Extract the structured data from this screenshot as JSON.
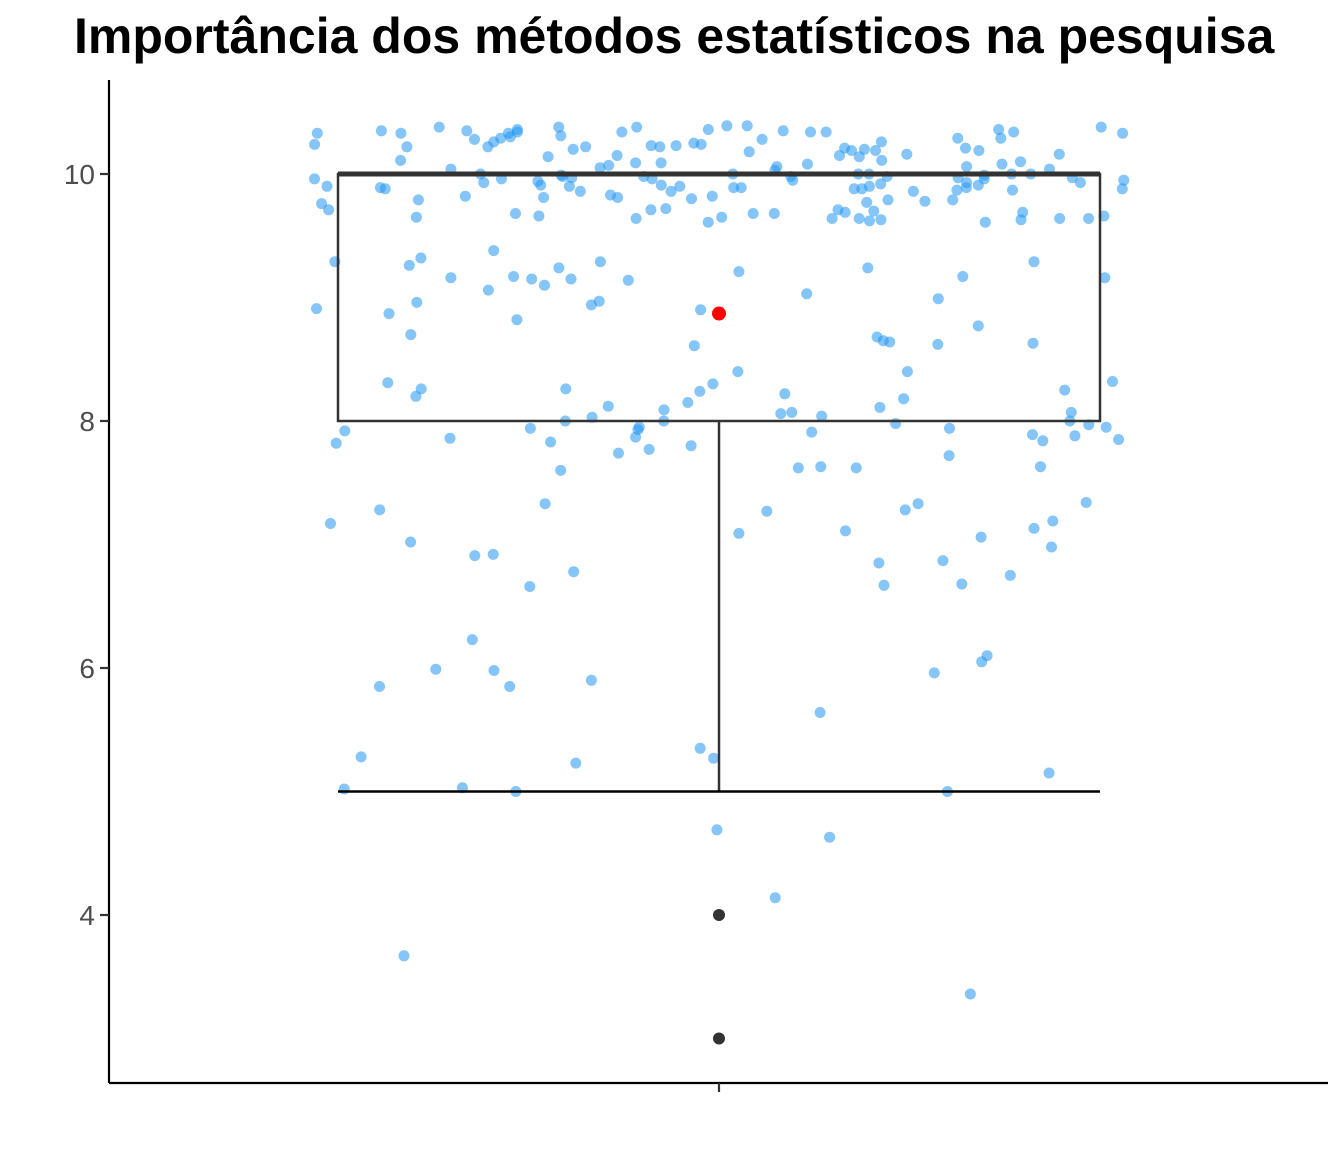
{
  "chart_data": {
    "type": "boxplot",
    "title": "Importância dos métodos estatísticos na pesquisa",
    "xlabel": "",
    "ylabel": "",
    "y_ticks": [
      4,
      6,
      8,
      10
    ],
    "ylim": [
      2.67,
      10.77
    ],
    "grid": false,
    "legend": "none",
    "box": {
      "lower_whisker": 5,
      "q1": 8,
      "median": 10,
      "q3": 10,
      "upper_whisker": 10,
      "mean": 8.87
    },
    "outliers": [
      4,
      3
    ],
    "jitter_values": [
      10.21,
      10.38,
      10.34,
      10.33,
      10.2,
      10.14,
      9.16,
      10.0,
      9.98,
      9.61,
      9.86,
      10.22,
      10.29,
      10.35,
      10.35,
      10.29,
      10.0,
      9.79,
      9.63,
      10.36,
      10.33,
      10.25,
      10.16,
      10.07,
      9.94,
      9.83,
      9.64,
      10.1,
      9.96,
      10.22,
      10.19,
      10.04,
      10.38,
      9.9,
      9.81,
      9.65,
      9.66,
      9.8,
      9.78,
      10.26,
      9.72,
      9.69,
      9.91,
      9.99,
      10.39,
      10.29,
      10.26,
      10.11,
      9.98,
      9.88,
      9.7,
      9.64,
      9.63,
      10.36,
      10.34,
      10.38,
      10.23,
      9.93,
      9.91,
      9.71,
      9.68,
      9.79,
      9.88,
      9.96,
      9.81,
      9.66,
      9.71,
      10.22,
      10.21,
      10.24,
      10.18,
      10.08,
      10.34,
      9.92,
      9.9,
      10.28,
      10.23,
      10.39,
      10.19,
      10.14,
      9.61,
      9.64,
      10.28,
      9.89,
      10.04,
      10.08,
      9.76,
      9.64,
      10.15,
      10.09,
      10.06,
      9.9,
      9.91,
      9.87,
      9.88,
      9.82,
      9.82,
      9.68,
      9.64,
      10.34,
      10.06,
      10.19,
      9.89,
      9.97,
      10.35,
      10.33,
      9.9,
      9.89,
      9.98,
      9.87,
      9.96,
      9.93,
      9.98,
      10.09,
      10.33,
      10.2,
      9.79,
      9.96,
      9.97,
      9.95,
      9.95,
      10.0,
      10.31,
      10.24,
      10.34,
      9.89,
      9.71,
      9.62,
      10.0,
      10.36,
      9.69,
      10.16,
      9.77,
      9.65,
      10.03,
      9.93,
      9.88,
      9.86,
      9.97,
      10.0,
      10.05,
      10.15,
      10.3,
      9.86,
      10.22,
      9.68,
      10.38,
      10.11,
      10.0,
      9.99,
      9.17,
      9.15,
      8.24,
      8.9,
      9.32,
      9.29,
      8.94,
      8.91,
      9.03,
      9.14,
      8.87,
      8.96,
      9.26,
      8.7,
      8.99,
      8.64,
      8.65,
      8.97,
      9.06,
      8.61,
      8.25,
      8.26,
      8.31,
      8.63,
      9.29,
      8.32,
      9.38,
      9.17,
      8.22,
      9.16,
      8.82,
      8.4,
      9.24,
      8.77,
      9.1,
      8.4,
      8.18,
      9.21,
      8.68,
      9.24,
      9.15,
      8.26,
      8.62,
      9.29,
      8.2,
      8.3,
      8.15,
      8.12,
      8.11,
      8.04,
      8.06,
      8.03,
      8.09,
      8.0,
      8.07,
      8.0,
      8.07,
      8.0,
      7.91,
      7.93,
      7.89,
      7.94,
      7.92,
      7.95,
      7.87,
      7.88,
      7.95,
      7.82,
      7.77,
      7.74,
      7.86,
      7.84,
      7.83,
      7.97,
      7.98,
      7.85,
      7.94,
      7.8,
      7.62,
      7.63,
      7.6,
      7.72,
      7.62,
      7.63,
      7.27,
      7.28,
      7.19,
      7.33,
      7.17,
      7.11,
      7.33,
      7.06,
      7.28,
      7.34,
      7.09,
      7.13,
      6.91,
      7.02,
      6.92,
      6.98,
      6.68,
      6.66,
      6.78,
      6.75,
      6.87,
      6.85,
      6.67,
      6.23,
      6.1,
      6.05,
      5.96,
      5.98,
      5.99,
      5.85,
      5.85,
      5.9,
      5.35,
      5.27,
      5.28,
      5.23,
      5.64,
      5.15,
      5.03,
      5.02,
      5.0,
      5.0,
      4.69,
      4.63,
      4.14,
      3.67,
      3.36
    ]
  }
}
